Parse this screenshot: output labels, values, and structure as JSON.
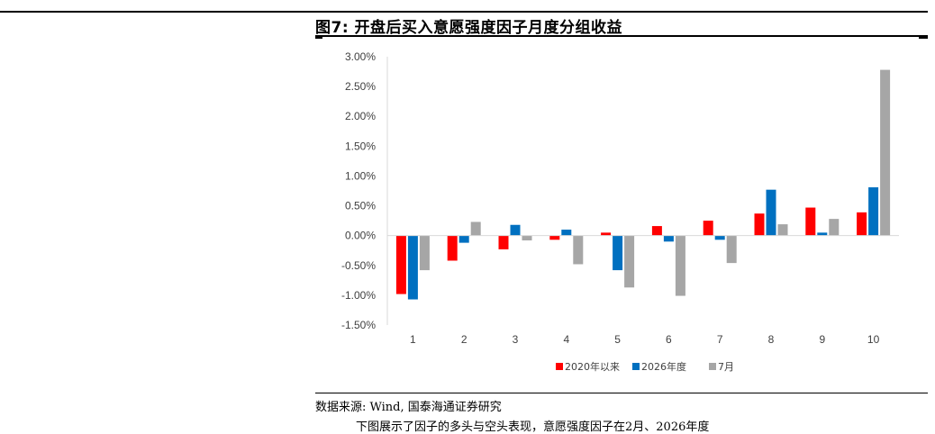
{
  "title": "图7: 开盘后买入意愿强度因子月度分组收益",
  "source": "数据来源: Wind, 国泰海通证券研究",
  "trailing_text": "下图展示了因子的多头与空头表现，意愿强度因子在2月、2026年度",
  "chart_data": {
    "type": "bar",
    "categories": [
      "1",
      "2",
      "3",
      "4",
      "5",
      "6",
      "7",
      "8",
      "9",
      "10"
    ],
    "series": [
      {
        "name": "2020年以来",
        "color": "#ff0000",
        "values": [
          -0.0098,
          -0.0042,
          -0.0023,
          -0.0007,
          0.0005,
          0.0016,
          0.0025,
          0.0037,
          0.0047,
          0.0039
        ]
      },
      {
        "name": "2026年度",
        "color": "#0070c0",
        "values": [
          -0.0107,
          -0.0012,
          0.0018,
          0.001,
          -0.0058,
          -0.001,
          -0.0007,
          0.0077,
          0.0005,
          0.0081
        ]
      },
      {
        "name": "7月",
        "color": "#a6a6a6",
        "values": [
          -0.0058,
          0.0023,
          -0.0008,
          -0.0048,
          -0.0087,
          -0.0101,
          -0.0046,
          0.0019,
          0.0028,
          0.0278
        ]
      }
    ],
    "ylim": [
      -0.015,
      0.03
    ],
    "yticks": [
      "3.00%",
      "2.50%",
      "2.00%",
      "1.50%",
      "1.00%",
      "0.50%",
      "0.00%",
      "-0.50%",
      "-1.00%",
      "-1.50%"
    ],
    "ytick_values": [
      0.03,
      0.025,
      0.02,
      0.015,
      0.01,
      0.005,
      0,
      -0.005,
      -0.01,
      -0.015
    ],
    "legend_position": "bottom-center",
    "grid": false
  }
}
